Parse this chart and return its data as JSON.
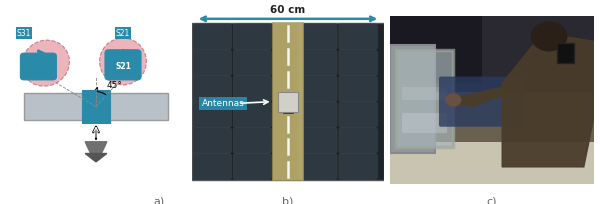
{
  "fig_width": 6.0,
  "fig_height": 2.04,
  "dpi": 100,
  "bg_color": "#ffffff",
  "label_a": "a)",
  "label_b": "b)",
  "label_c": "c)",
  "label_fontsize": 8,
  "label_color": "#666666",
  "teal": "#2a8aaa",
  "panel_a": {
    "glass_color": "#b8c0c8",
    "glass_edge": "#999999",
    "teal": "#2a8aaa",
    "pink_fill": "#e8a8b0",
    "pink_edge": "#c07080",
    "angle_text": "45°",
    "s31_text": "S31",
    "s21_text": "S21"
  },
  "panel_b": {
    "foam_dark": "#1e2428",
    "foam_bump": "#2e3840",
    "foam_edge": "#444444",
    "glass_fill": "#c8b870",
    "glass_edge": "#b0a060",
    "dashed_color": "#ffffff",
    "teal": "#2a8aaa",
    "label_fill": "#2a8aaa",
    "dim_horiz": "60 cm",
    "dim_vert": "60 cm",
    "antennas_text": "Antennas"
  },
  "panel_c": {
    "sky_color": "#c8ccd0",
    "person_dark": "#4a3c2a",
    "car_color": "#2a2a2a",
    "glass_frame": "#b0b8b0",
    "snow_color": "#d0ccc0",
    "interior_color": "#3a3020"
  }
}
